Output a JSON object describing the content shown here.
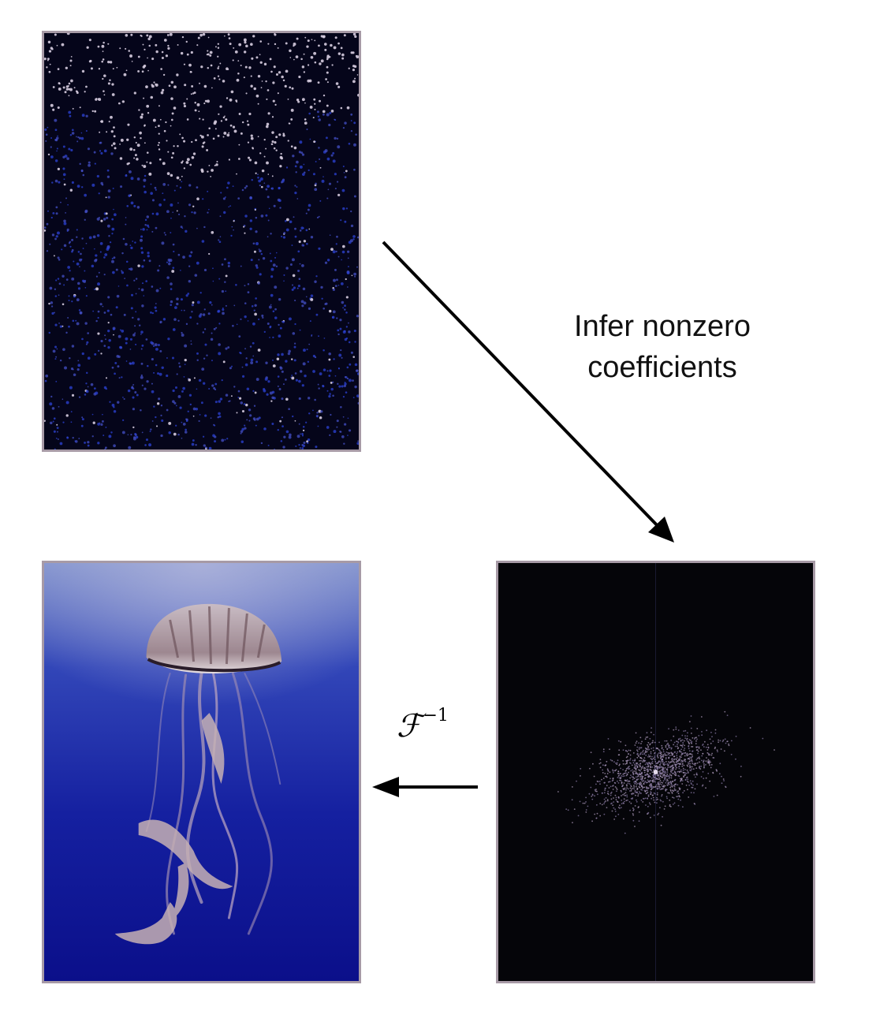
{
  "caption": {
    "line1": "Infer nonzero",
    "line2": "coefficients"
  },
  "operator": {
    "symbol": "ℱ",
    "superscript": "−1"
  },
  "colors": {
    "frame": "#a79aa6",
    "sparse_background": "#05051a",
    "frequency_background": "#050509",
    "ocean_top": "#7d8fcc",
    "ocean_bottom": "#0b0f8a"
  }
}
